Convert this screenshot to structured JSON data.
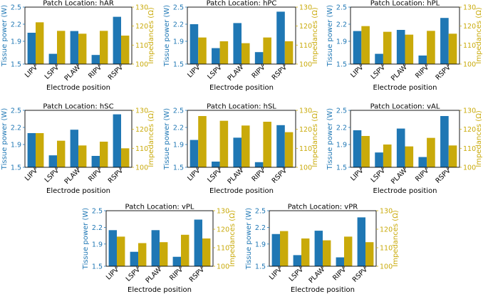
{
  "figure": {
    "xlabel": "Electrode position",
    "ylabel_left": "Tissue power (W)",
    "ylabel_right": "Impedances (Ω)",
    "colors": {
      "power": "#1f77b4",
      "impedance": "#c9aa0a"
    }
  },
  "chart_data": [
    {
      "type": "bar",
      "title": "Patch Location: hAR",
      "categories": [
        "LIPV",
        "LSPV",
        "PLAW",
        "RIPV",
        "RSPV"
      ],
      "series": [
        {
          "name": "Tissue power (W)",
          "axis": "left",
          "values": [
            2.05,
            1.68,
            2.08,
            1.66,
            2.33
          ]
        },
        {
          "name": "Impedances (Ω)",
          "axis": "right",
          "values": [
            122,
            117.5,
            116,
            117.5,
            115
          ]
        }
      ],
      "xlabel": "Electrode position",
      "ylabel_left": "Tissue power (W)",
      "ylabel_right": "Impedances (Ω)",
      "ylim_left": [
        1.5,
        2.5
      ],
      "yticks_left": [
        "1.5",
        "1.9",
        "2.2",
        "2.5"
      ],
      "ylim_right": [
        100,
        130
      ],
      "yticks_right": [
        "100",
        "110",
        "120",
        "130"
      ]
    },
    {
      "type": "bar",
      "title": "Patch Location: hPC",
      "categories": [
        "LIPV",
        "LSPV",
        "PLAW",
        "RIPV",
        "RSPV"
      ],
      "series": [
        {
          "name": "Tissue power (W)",
          "axis": "left",
          "values": [
            2.2,
            1.78,
            2.22,
            1.71,
            2.42
          ]
        },
        {
          "name": "Impedances (Ω)",
          "axis": "right",
          "values": [
            114,
            112,
            111,
            114,
            112
          ]
        }
      ],
      "xlabel": "Electrode position",
      "ylabel_left": "Tissue power (W)",
      "ylabel_right": "Impedances (Ω)",
      "ylim_left": [
        1.5,
        2.5
      ],
      "yticks_left": [
        "1.5",
        "1.9",
        "2.2",
        "2.5"
      ],
      "ylim_right": [
        100,
        130
      ],
      "yticks_right": [
        "100",
        "110",
        "120",
        "130"
      ]
    },
    {
      "type": "bar",
      "title": "Patch Location: hPL",
      "categories": [
        "LIPV",
        "LSPV",
        "PLAW",
        "RIPV",
        "RSPV"
      ],
      "series": [
        {
          "name": "Tissue power (W)",
          "axis": "left",
          "values": [
            2.08,
            1.68,
            2.1,
            1.65,
            2.31
          ]
        },
        {
          "name": "Impedances (Ω)",
          "axis": "right",
          "values": [
            120,
            117,
            115.5,
            117.5,
            116
          ]
        }
      ],
      "xlabel": "Electrode position",
      "ylabel_left": "Tissue power (W)",
      "ylabel_right": "Impedances (Ω)",
      "ylim_left": [
        1.5,
        2.5
      ],
      "yticks_left": [
        "1.5",
        "1.9",
        "2.2",
        "2.5"
      ],
      "ylim_right": [
        100,
        130
      ],
      "yticks_right": [
        "100",
        "110",
        "120",
        "130"
      ]
    },
    {
      "type": "bar",
      "title": "Patch Location: hSC",
      "categories": [
        "LIPV",
        "LSPV",
        "PLAW",
        "RIPV",
        "RSPV"
      ],
      "series": [
        {
          "name": "Tissue power (W)",
          "axis": "left",
          "values": [
            2.1,
            1.71,
            2.16,
            1.7,
            2.43
          ]
        },
        {
          "name": "Impedances (Ω)",
          "axis": "right",
          "values": [
            118,
            114,
            111.5,
            113.5,
            110
          ]
        }
      ],
      "xlabel": "Electrode position",
      "ylabel_left": "Tissue power (W)",
      "ylabel_right": "Impedances (Ω)",
      "ylim_left": [
        1.5,
        2.5
      ],
      "yticks_left": [
        "1.5",
        "1.9",
        "2.2",
        "2.5"
      ],
      "ylim_right": [
        100,
        130
      ],
      "yticks_right": [
        "100",
        "110",
        "120",
        "130"
      ]
    },
    {
      "type": "bar",
      "title": "Patch Location: hSL",
      "categories": [
        "LIPV",
        "LSPV",
        "PLAW",
        "RIPV",
        "RSPV"
      ],
      "series": [
        {
          "name": "Tissue power (W)",
          "axis": "left",
          "values": [
            1.98,
            1.6,
            2.02,
            1.59,
            2.24
          ]
        },
        {
          "name": "Impedances (Ω)",
          "axis": "right",
          "values": [
            127,
            124.5,
            122,
            124,
            118.5
          ]
        }
      ],
      "xlabel": "Electrode position",
      "ylabel_left": "Tissue power (W)",
      "ylabel_right": "Impedances (Ω)",
      "ylim_left": [
        1.5,
        2.5
      ],
      "yticks_left": [
        "1.5",
        "1.9",
        "2.2",
        "2.5"
      ],
      "ylim_right": [
        100,
        130
      ],
      "yticks_right": [
        "100",
        "110",
        "120",
        "130"
      ]
    },
    {
      "type": "bar",
      "title": "Patch Location: vAL",
      "categories": [
        "LIPV",
        "LSPV",
        "PLAW",
        "RIPV",
        "RSPV"
      ],
      "series": [
        {
          "name": "Tissue power (W)",
          "axis": "left",
          "values": [
            2.15,
            1.76,
            2.18,
            1.68,
            2.4
          ]
        },
        {
          "name": "Impedances (Ω)",
          "axis": "right",
          "values": [
            116.5,
            112,
            111,
            115.5,
            111.5
          ]
        }
      ],
      "xlabel": "Electrode position",
      "ylabel_left": "Tissue power (W)",
      "ylabel_right": "Impedances (Ω)",
      "ylim_left": [
        1.5,
        2.5
      ],
      "yticks_left": [
        "1.5",
        "1.9",
        "2.2",
        "2.5"
      ],
      "ylim_right": [
        100,
        130
      ],
      "yticks_right": [
        "100",
        "110",
        "120",
        "130"
      ]
    },
    {
      "type": "bar",
      "title": "Patch Location: vPL",
      "categories": [
        "LIPV",
        "LSPV",
        "PLAW",
        "RIPV",
        "RSPV"
      ],
      "series": [
        {
          "name": "Tissue power (W)",
          "axis": "left",
          "values": [
            2.15,
            1.76,
            2.15,
            1.67,
            2.34
          ]
        },
        {
          "name": "Impedances (Ω)",
          "axis": "right",
          "values": [
            116,
            112.5,
            113,
            117,
            115
          ]
        }
      ],
      "xlabel": "Electrode position",
      "ylabel_left": "Tissue power (W)",
      "ylabel_right": "Impedances (Ω)",
      "ylim_left": [
        1.5,
        2.5
      ],
      "yticks_left": [
        "1.5",
        "1.9",
        "2.2",
        "2.5"
      ],
      "ylim_right": [
        100,
        130
      ],
      "yticks_right": [
        "100",
        "110",
        "120",
        "130"
      ]
    },
    {
      "type": "bar",
      "title": "Patch Location: vPR",
      "categories": [
        "LIPV",
        "LSPV",
        "PLAW",
        "RIPV",
        "RSPV"
      ],
      "series": [
        {
          "name": "Tissue power (W)",
          "axis": "left",
          "values": [
            2.08,
            1.7,
            2.14,
            1.66,
            2.38
          ]
        },
        {
          "name": "Impedances (Ω)",
          "axis": "right",
          "values": [
            119,
            115,
            114,
            116,
            113
          ]
        }
      ],
      "xlabel": "Electrode position",
      "ylabel_left": "Tissue power (W)",
      "ylabel_right": "Impedances (Ω)",
      "ylim_left": [
        1.5,
        2.5
      ],
      "yticks_left": [
        "1.5",
        "1.9",
        "2.2",
        "2.5"
      ],
      "ylim_right": [
        100,
        130
      ],
      "yticks_right": [
        "100",
        "110",
        "120",
        "130"
      ]
    }
  ]
}
